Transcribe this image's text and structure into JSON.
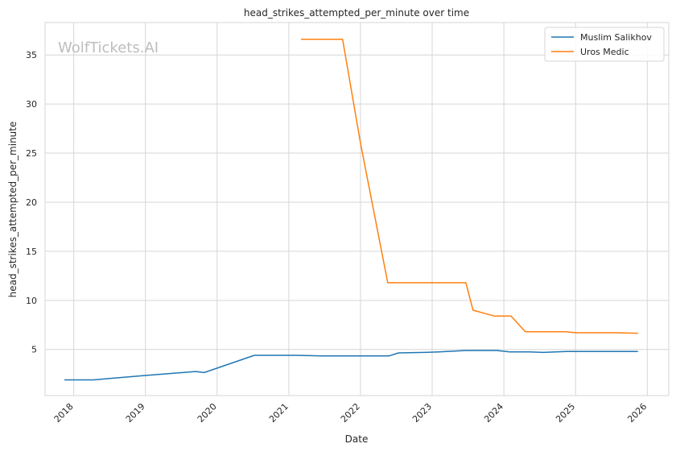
{
  "chart_data": {
    "type": "line",
    "title": "head_strikes_attempted_per_minute over time",
    "xlabel": "Date",
    "ylabel": "head_strikes_attempted_per_minute",
    "watermark": "WolfTickets.AI",
    "xlim": [
      2017.6,
      2026.3
    ],
    "ylim": [
      0.3,
      38.3
    ],
    "x_ticks": [
      2018,
      2019,
      2020,
      2021,
      2022,
      2023,
      2024,
      2025,
      2026
    ],
    "x_tick_labels": [
      "2018",
      "2019",
      "2020",
      "2021",
      "2022",
      "2023",
      "2024",
      "2025",
      "2026"
    ],
    "y_ticks": [
      5,
      10,
      15,
      20,
      25,
      30,
      35
    ],
    "y_tick_labels": [
      "5",
      "10",
      "15",
      "20",
      "25",
      "30",
      "35"
    ],
    "grid": true,
    "legend_position": "top-right",
    "series": [
      {
        "name": "Muslim Salikhov",
        "color": "#1f77b4",
        "x": [
          2017.87,
          2018.27,
          2019.0,
          2019.7,
          2019.82,
          2020.52,
          2021.1,
          2021.45,
          2021.8,
          2022.12,
          2022.4,
          2022.53,
          2022.9,
          2023.1,
          2023.47,
          2023.9,
          2024.08,
          2024.35,
          2024.55,
          2024.87,
          2025.15,
          2025.6,
          2025.87
        ],
        "y": [
          1.9,
          1.9,
          2.35,
          2.75,
          2.65,
          4.4,
          4.4,
          4.35,
          4.35,
          4.35,
          4.35,
          4.65,
          4.7,
          4.75,
          4.9,
          4.9,
          4.75,
          4.75,
          4.7,
          4.8,
          4.8,
          4.8,
          4.8
        ]
      },
      {
        "name": "Uros Medic",
        "color": "#ff7f0e",
        "x": [
          2021.17,
          2021.75,
          2022.0,
          2022.38,
          2022.55,
          2022.9,
          2023.47,
          2023.57,
          2023.87,
          2024.1,
          2024.3,
          2024.87,
          2025.0,
          2025.55,
          2025.87
        ],
        "y": [
          36.6,
          36.6,
          26.0,
          11.8,
          11.8,
          11.8,
          11.8,
          9.0,
          8.4,
          8.4,
          6.8,
          6.8,
          6.7,
          6.7,
          6.65
        ]
      }
    ]
  }
}
